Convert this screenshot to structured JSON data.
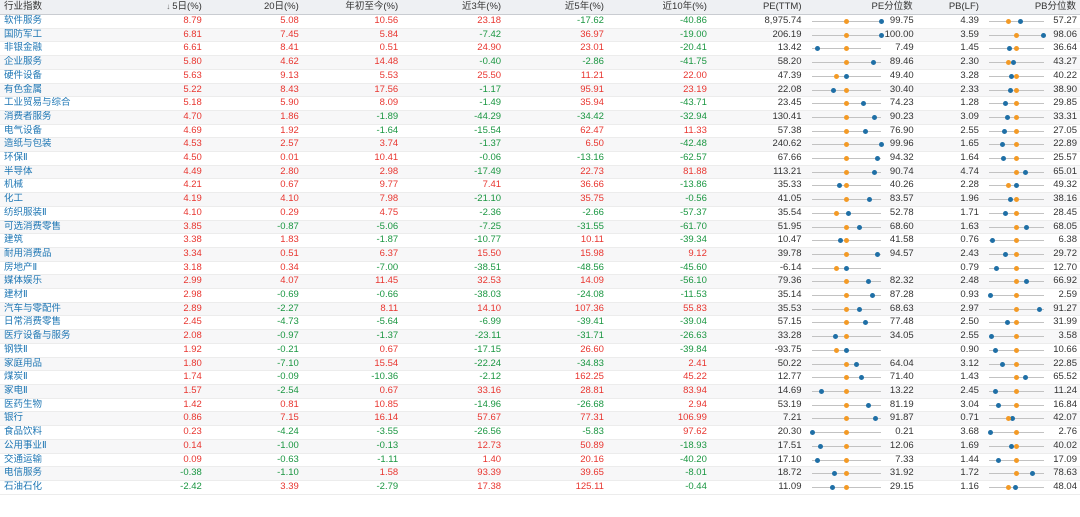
{
  "headers": {
    "name": "行业指数",
    "r5": "5日(%)",
    "sort_icon": "↓",
    "r20": "20日(%)",
    "ytd": "年初至今(%)",
    "y3": "近3年(%)",
    "y5": "近5年(%)",
    "y10": "近10年(%)",
    "pe": "PE(TTM)",
    "pe_pct": "PE分位数",
    "pb": "PB(LF)",
    "pb_pct": "PB分位数"
  },
  "colors": {
    "up": "#e8352f",
    "down": "#1a9641",
    "orange_marker": "#f39a26",
    "blue_marker": "#1f6fa6",
    "name_link": "#1f77b4"
  },
  "rows": [
    {
      "name": "软件服务",
      "r5": "8.79",
      "r20": "5.08",
      "ytd": "10.56",
      "y3": "23.18",
      "y5": "-17.62",
      "y10": "-40.86",
      "pe": "8,975.74",
      "pe_pct": "99.75",
      "pb": "4.39",
      "pb_pct": "57.27"
    },
    {
      "name": "国防军工",
      "r5": "6.81",
      "r20": "7.45",
      "ytd": "5.84",
      "y3": "-7.42",
      "y5": "36.97",
      "y10": "-19.00",
      "pe": "206.19",
      "pe_pct": "100.00",
      "pb": "3.59",
      "pb_pct": "98.06"
    },
    {
      "name": "非银金融",
      "r5": "6.61",
      "r20": "8.41",
      "ytd": "0.51",
      "y3": "24.90",
      "y5": "23.01",
      "y10": "-20.41",
      "pe": "13.42",
      "pe_pct": "7.49",
      "pb": "1.45",
      "pb_pct": "36.64"
    },
    {
      "name": "企业服务",
      "r5": "5.80",
      "r20": "4.62",
      "ytd": "14.48",
      "y3": "-0.40",
      "y5": "-2.86",
      "y10": "-41.75",
      "pe": "58.20",
      "pe_pct": "89.46",
      "pb": "2.30",
      "pb_pct": "43.27"
    },
    {
      "name": "硬件设备",
      "r5": "5.63",
      "r20": "9.13",
      "ytd": "5.53",
      "y3": "25.50",
      "y5": "11.21",
      "y10": "22.00",
      "pe": "47.39",
      "pe_pct": "49.40",
      "pb": "3.28",
      "pb_pct": "40.22"
    },
    {
      "name": "有色金属",
      "r5": "5.22",
      "r20": "8.43",
      "ytd": "17.56",
      "y3": "-1.17",
      "y5": "95.91",
      "y10": "23.19",
      "pe": "22.08",
      "pe_pct": "30.40",
      "pb": "2.33",
      "pb_pct": "38.90"
    },
    {
      "name": "工业贸易与综合",
      "r5": "5.18",
      "r20": "5.90",
      "ytd": "8.09",
      "y3": "-1.49",
      "y5": "35.94",
      "y10": "-43.71",
      "pe": "23.45",
      "pe_pct": "74.23",
      "pb": "1.28",
      "pb_pct": "29.85"
    },
    {
      "name": "消费者服务",
      "r5": "4.70",
      "r20": "1.86",
      "ytd": "-1.89",
      "y3": "-44.29",
      "y5": "-34.42",
      "y10": "-32.94",
      "pe": "130.41",
      "pe_pct": "90.23",
      "pb": "3.09",
      "pb_pct": "33.31"
    },
    {
      "name": "电气设备",
      "r5": "4.69",
      "r20": "1.92",
      "ytd": "-1.64",
      "y3": "-15.54",
      "y5": "62.47",
      "y10": "11.33",
      "pe": "57.38",
      "pe_pct": "76.90",
      "pb": "2.55",
      "pb_pct": "27.05"
    },
    {
      "name": "造纸与包装",
      "r5": "4.53",
      "r20": "2.57",
      "ytd": "3.74",
      "y3": "-1.37",
      "y5": "6.50",
      "y10": "-42.48",
      "pe": "240.62",
      "pe_pct": "99.96",
      "pb": "1.65",
      "pb_pct": "22.89"
    },
    {
      "name": "环保Ⅱ",
      "r5": "4.50",
      "r20": "0.01",
      "ytd": "10.41",
      "y3": "-0.06",
      "y5": "-13.16",
      "y10": "-62.57",
      "pe": "67.66",
      "pe_pct": "94.32",
      "pb": "1.64",
      "pb_pct": "25.57"
    },
    {
      "name": "半导体",
      "r5": "4.49",
      "r20": "2.80",
      "ytd": "2.98",
      "y3": "-17.49",
      "y5": "22.73",
      "y10": "81.88",
      "pe": "113.21",
      "pe_pct": "90.74",
      "pb": "4.74",
      "pb_pct": "65.01"
    },
    {
      "name": "机械",
      "r5": "4.21",
      "r20": "0.67",
      "ytd": "9.77",
      "y3": "7.41",
      "y5": "36.66",
      "y10": "-13.86",
      "pe": "35.33",
      "pe_pct": "40.26",
      "pb": "2.28",
      "pb_pct": "49.32"
    },
    {
      "name": "化工",
      "r5": "4.19",
      "r20": "4.10",
      "ytd": "7.98",
      "y3": "-21.10",
      "y5": "35.75",
      "y10": "-0.56",
      "pe": "41.05",
      "pe_pct": "83.57",
      "pb": "1.96",
      "pb_pct": "38.16"
    },
    {
      "name": "纺织服装Ⅱ",
      "r5": "4.10",
      "r20": "0.29",
      "ytd": "4.75",
      "y3": "-2.36",
      "y5": "-2.66",
      "y10": "-57.37",
      "pe": "35.54",
      "pe_pct": "52.78",
      "pb": "1.71",
      "pb_pct": "28.45"
    },
    {
      "name": "可选消费零售",
      "r5": "3.85",
      "r20": "-0.87",
      "ytd": "-5.06",
      "y3": "-7.25",
      "y5": "-31.55",
      "y10": "-61.70",
      "pe": "51.95",
      "pe_pct": "68.60",
      "pb": "1.63",
      "pb_pct": "68.05"
    },
    {
      "name": "建筑",
      "r5": "3.38",
      "r20": "1.83",
      "ytd": "-1.87",
      "y3": "-10.77",
      "y5": "10.11",
      "y10": "-39.34",
      "pe": "10.47",
      "pe_pct": "41.58",
      "pb": "0.76",
      "pb_pct": "6.38"
    },
    {
      "name": "耐用消费品",
      "r5": "3.34",
      "r20": "0.51",
      "ytd": "6.37",
      "y3": "15.50",
      "y5": "15.98",
      "y10": "9.12",
      "pe": "39.78",
      "pe_pct": "94.57",
      "pb": "2.43",
      "pb_pct": "29.72"
    },
    {
      "name": "房地产Ⅱ",
      "r5": "3.18",
      "r20": "0.34",
      "ytd": "-7.00",
      "y3": "-38.51",
      "y5": "-48.56",
      "y10": "-45.60",
      "pe": "-6.14",
      "pe_pct": "",
      "pb": "0.79",
      "pb_pct": "12.70"
    },
    {
      "name": "媒体娱乐",
      "r5": "2.99",
      "r20": "4.07",
      "ytd": "11.45",
      "y3": "32.53",
      "y5": "14.09",
      "y10": "-56.10",
      "pe": "79.36",
      "pe_pct": "82.32",
      "pb": "2.48",
      "pb_pct": "66.92"
    },
    {
      "name": "建材Ⅱ",
      "r5": "2.98",
      "r20": "-0.69",
      "ytd": "-0.66",
      "y3": "-38.03",
      "y5": "-24.08",
      "y10": "-11.53",
      "pe": "35.14",
      "pe_pct": "87.28",
      "pb": "0.93",
      "pb_pct": "2.59"
    },
    {
      "name": "汽车与零配件",
      "r5": "2.89",
      "r20": "-2.27",
      "ytd": "8.11",
      "y3": "14.10",
      "y5": "107.36",
      "y10": "55.83",
      "pe": "35.53",
      "pe_pct": "68.63",
      "pb": "2.97",
      "pb_pct": "91.27"
    },
    {
      "name": "日常消费零售",
      "r5": "2.45",
      "r20": "-4.73",
      "ytd": "-5.64",
      "y3": "-6.99",
      "y5": "-39.41",
      "y10": "-39.04",
      "pe": "57.15",
      "pe_pct": "77.48",
      "pb": "2.50",
      "pb_pct": "31.99"
    },
    {
      "name": "医疗设备与服务",
      "r5": "2.08",
      "r20": "-0.97",
      "ytd": "-1.37",
      "y3": "-23.11",
      "y5": "-31.71",
      "y10": "-26.63",
      "pe": "33.28",
      "pe_pct": "34.05",
      "pb": "2.55",
      "pb_pct": "3.58"
    },
    {
      "name": "钢铁Ⅱ",
      "r5": "1.92",
      "r20": "-0.21",
      "ytd": "0.67",
      "y3": "-17.15",
      "y5": "26.60",
      "y10": "-39.84",
      "pe": "-93.75",
      "pe_pct": "",
      "pb": "0.90",
      "pb_pct": "10.66"
    },
    {
      "name": "家庭用品",
      "r5": "1.80",
      "r20": "-7.10",
      "ytd": "15.54",
      "y3": "-22.24",
      "y5": "-34.83",
      "y10": "2.41",
      "pe": "50.22",
      "pe_pct": "64.04",
      "pb": "3.12",
      "pb_pct": "22.85"
    },
    {
      "name": "煤炭Ⅱ",
      "r5": "1.74",
      "r20": "-0.09",
      "ytd": "-10.36",
      "y3": "-2.12",
      "y5": "162.25",
      "y10": "45.22",
      "pe": "12.77",
      "pe_pct": "71.40",
      "pb": "1.43",
      "pb_pct": "65.52"
    },
    {
      "name": "家电Ⅱ",
      "r5": "1.57",
      "r20": "-2.54",
      "ytd": "0.67",
      "y3": "33.16",
      "y5": "28.81",
      "y10": "83.94",
      "pe": "14.69",
      "pe_pct": "13.22",
      "pb": "2.45",
      "pb_pct": "11.24"
    },
    {
      "name": "医药生物",
      "r5": "1.42",
      "r20": "0.81",
      "ytd": "10.85",
      "y3": "-14.96",
      "y5": "-26.68",
      "y10": "2.94",
      "pe": "53.19",
      "pe_pct": "81.19",
      "pb": "3.04",
      "pb_pct": "16.84"
    },
    {
      "name": "银行",
      "r5": "0.86",
      "r20": "7.15",
      "ytd": "16.14",
      "y3": "57.67",
      "y5": "77.31",
      "y10": "106.99",
      "pe": "7.21",
      "pe_pct": "91.87",
      "pb": "0.71",
      "pb_pct": "42.07"
    },
    {
      "name": "食品饮料",
      "r5": "0.23",
      "r20": "-4.24",
      "ytd": "-3.55",
      "y3": "-26.56",
      "y5": "-5.83",
      "y10": "97.62",
      "pe": "20.30",
      "pe_pct": "0.21",
      "pb": "3.68",
      "pb_pct": "2.76"
    },
    {
      "name": "公用事业Ⅱ",
      "r5": "0.14",
      "r20": "-1.00",
      "ytd": "-0.13",
      "y3": "12.73",
      "y5": "50.89",
      "y10": "-18.93",
      "pe": "17.51",
      "pe_pct": "12.06",
      "pb": "1.69",
      "pb_pct": "40.02"
    },
    {
      "name": "交通运输",
      "r5": "0.09",
      "r20": "-0.63",
      "ytd": "-1.11",
      "y3": "1.40",
      "y5": "20.16",
      "y10": "-40.20",
      "pe": "17.10",
      "pe_pct": "7.33",
      "pb": "1.44",
      "pb_pct": "17.09"
    },
    {
      "name": "电信服务",
      "r5": "-0.38",
      "r20": "-1.10",
      "ytd": "1.58",
      "y3": "93.39",
      "y5": "39.65",
      "y10": "-8.01",
      "pe": "18.72",
      "pe_pct": "31.92",
      "pb": "1.72",
      "pb_pct": "78.63"
    },
    {
      "name": "石油石化",
      "r5": "-2.42",
      "r20": "3.39",
      "ytd": "-2.79",
      "y3": "17.38",
      "y5": "125.11",
      "y10": "-0.44",
      "pe": "11.09",
      "pe_pct": "29.15",
      "pb": "1.16",
      "pb_pct": "48.04"
    }
  ]
}
